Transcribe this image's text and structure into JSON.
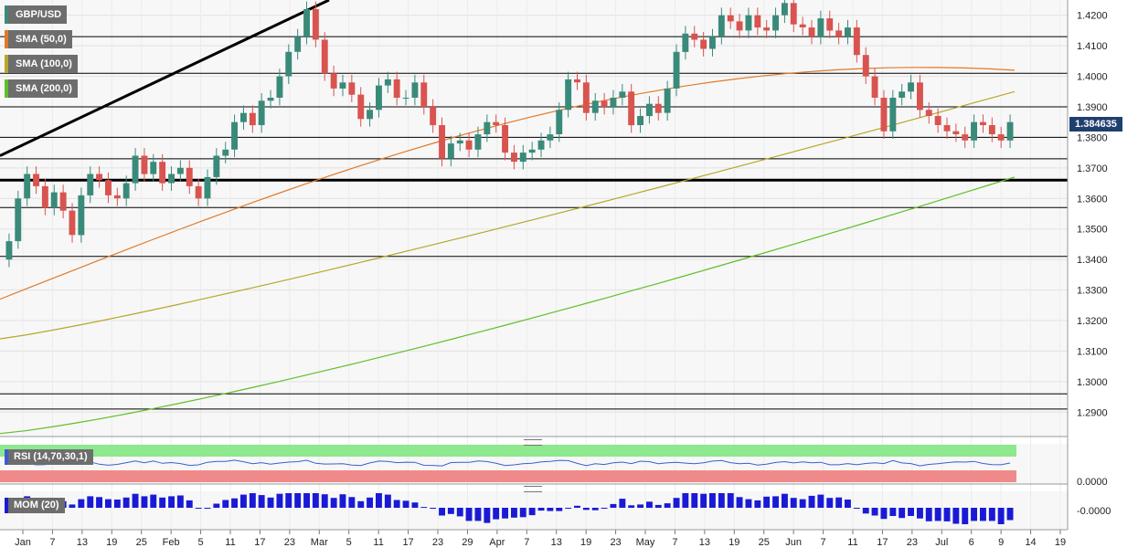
{
  "symbol": "GBP/USD",
  "legend": [
    {
      "label": "SMA (50,0)",
      "color": "#e07a2a"
    },
    {
      "label": "SMA (100,0)",
      "color": "#b8a62a"
    },
    {
      "label": "SMA (200,0)",
      "color": "#5fbf2a"
    }
  ],
  "last_price": "1.384635",
  "indicators": {
    "rsi_label": "RSI (14,70,30,1)",
    "rsi_value": "0.0000",
    "mom_label": "MOM (20)",
    "mom_value": "-0.0000"
  },
  "colors": {
    "up": "#3a8a7a",
    "down": "#d9534f",
    "rsi_over": "#8ee88e",
    "rsi_under": "#f08a8a",
    "rsi_line": "#3a5fcd",
    "mom_bar": "#1a1ad6",
    "level": "#000000"
  },
  "chart_data": {
    "type": "candlestick",
    "title": "GBP/USD",
    "ylim": [
      1.282,
      1.425
    ],
    "y_ticks": [
      "1.4200",
      "1.4100",
      "1.4000",
      "1.3900",
      "1.3800",
      "1.3700",
      "1.3600",
      "1.3500",
      "1.3400",
      "1.3300",
      "1.3200",
      "1.3100",
      "1.3000",
      "1.2900"
    ],
    "x_ticks": [
      "Jan",
      "7",
      "13",
      "19",
      "25",
      "Feb",
      "5",
      "11",
      "17",
      "23",
      "Mar",
      "5",
      "11",
      "17",
      "23",
      "29",
      "Apr",
      "7",
      "13",
      "19",
      "23",
      "May",
      "7",
      "13",
      "19",
      "25",
      "Jun",
      "7",
      "11",
      "17",
      "23",
      "Jul",
      "6",
      "9",
      "14",
      "19"
    ],
    "horizontal_levels": [
      1.413,
      1.401,
      1.39,
      1.38,
      1.373,
      1.366,
      1.357,
      1.341,
      1.296,
      1.291
    ],
    "trendline": [
      [
        1.374,
        1.425
      ]
    ],
    "candles_close": [
      1.346,
      1.36,
      1.368,
      1.364,
      1.357,
      1.362,
      1.356,
      1.348,
      1.361,
      1.368,
      1.366,
      1.361,
      1.36,
      1.365,
      1.374,
      1.368,
      1.372,
      1.365,
      1.368,
      1.37,
      1.364,
      1.36,
      1.367,
      1.374,
      1.376,
      1.385,
      1.388,
      1.384,
      1.392,
      1.393,
      1.4,
      1.408,
      1.413,
      1.422,
      1.412,
      1.401,
      1.396,
      1.398,
      1.394,
      1.386,
      1.389,
      1.397,
      1.399,
      1.393,
      1.393,
      1.398,
      1.39,
      1.384,
      1.373,
      1.378,
      1.379,
      1.376,
      1.381,
      1.385,
      1.384,
      1.375,
      1.372,
      1.375,
      1.376,
      1.379,
      1.381,
      1.389,
      1.399,
      1.398,
      1.388,
      1.392,
      1.39,
      1.393,
      1.395,
      1.384,
      1.387,
      1.391,
      1.388,
      1.396,
      1.408,
      1.414,
      1.412,
      1.409,
      1.413,
      1.42,
      1.418,
      1.415,
      1.42,
      1.416,
      1.415,
      1.42,
      1.424,
      1.417,
      1.416,
      1.413,
      1.419,
      1.415,
      1.413,
      1.416,
      1.407,
      1.4,
      1.393,
      1.382,
      1.393,
      1.395,
      1.398,
      1.389,
      1.387,
      1.384,
      1.382,
      1.381,
      1.379,
      1.385,
      1.384,
      1.381,
      1.379,
      1.385
    ],
    "series": [
      {
        "name": "SMA (50,0)",
        "start": 1.327,
        "end": 1.402
      },
      {
        "name": "SMA (100,0)",
        "start": 1.314,
        "end": 1.395
      },
      {
        "name": "SMA (200,0)",
        "start": 1.283,
        "end": 1.367
      }
    ]
  }
}
